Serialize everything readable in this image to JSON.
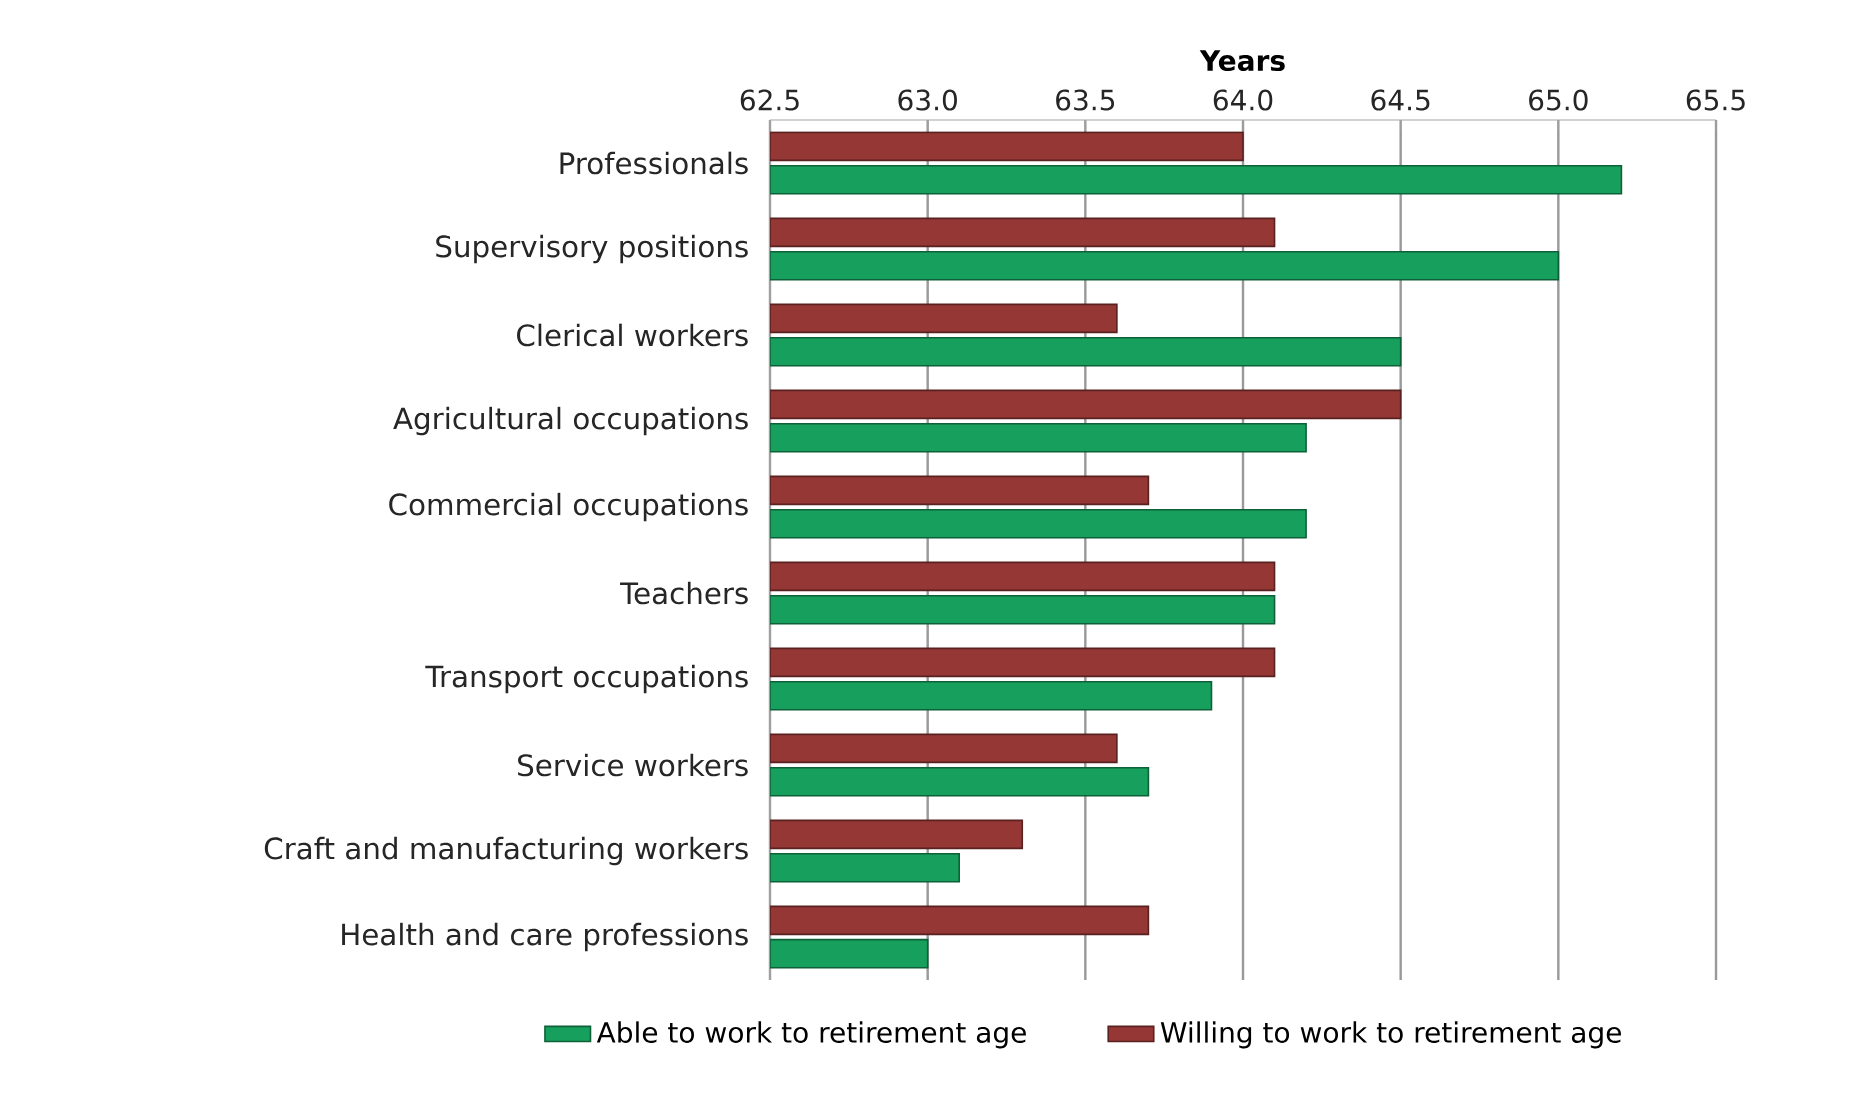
{
  "chart_data": {
    "type": "bar",
    "orientation": "horizontal",
    "xlabel": "Years",
    "categories": [
      "Professionals",
      "Supervisory positions",
      "Clerical workers",
      "Agricultural occupations",
      "Commercial occupations",
      "Teachers",
      "Transport occupations",
      "Service workers",
      "Craft and manufacturing workers",
      "Health and care professions"
    ],
    "series": [
      {
        "name": "Able to work to retirement age",
        "color": "#17a05d",
        "values": [
          65.2,
          65.0,
          64.5,
          64.2,
          64.2,
          64.1,
          63.9,
          63.7,
          63.1,
          63.0
        ]
      },
      {
        "name": "Willing to work to retirement age",
        "color": "#953735",
        "values": [
          64.0,
          64.1,
          63.6,
          64.5,
          63.7,
          64.1,
          64.1,
          63.6,
          63.3,
          63.7
        ]
      }
    ],
    "xlim": [
      62.5,
      65.5
    ],
    "xticks": [
      {
        "value": 62.5,
        "label": "62.5"
      },
      {
        "value": 63.0,
        "label": "63.0"
      },
      {
        "value": 63.5,
        "label": "63.5"
      },
      {
        "value": 64.0,
        "label": "64.0"
      },
      {
        "value": 64.5,
        "label": "64.5"
      },
      {
        "value": 65.0,
        "label": "65.0"
      },
      {
        "value": 65.5,
        "label": "65.5"
      }
    ],
    "grid": "x",
    "legend": "bottom"
  }
}
